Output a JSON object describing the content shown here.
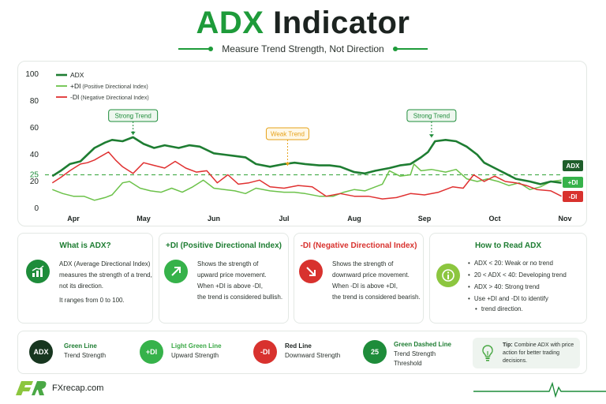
{
  "header": {
    "title_accent": "ADX",
    "title_rest": "Indicator",
    "subtitle": "Measure Trend Strength, Not Direction"
  },
  "colors": {
    "adx": "#1e7d32",
    "plus_di": "#6cc24a",
    "minus_di": "#e03131",
    "threshold": "#4caf50"
  },
  "chart_data": {
    "type": "line",
    "x_labels": [
      "Apr",
      "May",
      "Jun",
      "Jul",
      "Aug",
      "Sep",
      "Oct",
      "Nov"
    ],
    "y_ticks": [
      0,
      20,
      25,
      40,
      60,
      80,
      100
    ],
    "ylim": [
      0,
      100
    ],
    "grid": false,
    "legend_position": "top-left",
    "legend": [
      {
        "name": "ADX",
        "note": ""
      },
      {
        "name": "+DI",
        "note": "(Positive Directional Index)"
      },
      {
        "name": "-DI",
        "note": "(Negative Directional Index)"
      }
    ],
    "threshold": 25,
    "end_labels": [
      "ADX",
      "+DI",
      "-DI"
    ],
    "annotations": [
      {
        "label": "Strong Trend",
        "x": 0.85,
        "y": 53,
        "style": "green"
      },
      {
        "label": "Weak Trend",
        "x": 3.05,
        "y": 30,
        "style": "amber"
      },
      {
        "label": "Strong Trend",
        "x": 5.1,
        "y": 51,
        "style": "green"
      }
    ],
    "series": [
      {
        "name": "ADX",
        "x": [
          -0.3,
          -0.18,
          -0.05,
          0.1,
          0.2,
          0.3,
          0.45,
          0.55,
          0.7,
          0.85,
          1.0,
          1.15,
          1.3,
          1.5,
          1.65,
          1.8,
          2.0,
          2.15,
          2.3,
          2.45,
          2.6,
          2.8,
          3.0,
          3.15,
          3.3,
          3.5,
          3.65,
          3.8,
          4.0,
          4.15,
          4.3,
          4.5,
          4.65,
          4.8,
          4.95,
          5.05,
          5.15,
          5.3,
          5.45,
          5.6,
          5.75,
          5.85,
          6.0,
          6.15,
          6.3,
          6.5,
          6.65,
          6.8,
          6.95
        ],
        "values": [
          24,
          28,
          33,
          35,
          40,
          45,
          49,
          51,
          50,
          53,
          48,
          45,
          47,
          45,
          47,
          46,
          41,
          40,
          39,
          38,
          33,
          31,
          33,
          34,
          33,
          32,
          32,
          31,
          27,
          26,
          28,
          30,
          32,
          33,
          38,
          42,
          50,
          51,
          50,
          46,
          40,
          34,
          30,
          26,
          22,
          20,
          18,
          20,
          19
        ]
      },
      {
        "name": "+DI",
        "x": [
          -0.3,
          -0.15,
          0.0,
          0.15,
          0.3,
          0.45,
          0.55,
          0.7,
          0.8,
          0.95,
          1.1,
          1.25,
          1.4,
          1.55,
          1.7,
          1.85,
          2.0,
          2.15,
          2.3,
          2.45,
          2.6,
          2.8,
          3.0,
          3.15,
          3.3,
          3.5,
          3.7,
          3.85,
          4.0,
          4.15,
          4.3,
          4.4,
          4.5,
          4.65,
          4.8,
          4.85,
          4.95,
          5.1,
          5.3,
          5.45,
          5.6,
          5.75,
          5.9,
          6.05,
          6.2,
          6.35,
          6.5,
          6.65,
          6.8,
          6.95
        ],
        "values": [
          14,
          11,
          9,
          9,
          6,
          8,
          10,
          19,
          20,
          15,
          13,
          12,
          15,
          12,
          16,
          21,
          15,
          14,
          13,
          11,
          15,
          13,
          12,
          12,
          11,
          9,
          9,
          12,
          14,
          13,
          16,
          18,
          28,
          24,
          25,
          33,
          28,
          29,
          27,
          29,
          22,
          20,
          22,
          20,
          17,
          19,
          14,
          16,
          20,
          21
        ]
      },
      {
        "name": "-DI",
        "x": [
          -0.3,
          -0.18,
          -0.05,
          0.1,
          0.2,
          0.3,
          0.4,
          0.5,
          0.6,
          0.7,
          0.85,
          1.0,
          1.15,
          1.3,
          1.45,
          1.6,
          1.75,
          1.9,
          2.05,
          2.2,
          2.35,
          2.5,
          2.65,
          2.8,
          3.0,
          3.2,
          3.4,
          3.6,
          3.8,
          4.0,
          4.2,
          4.4,
          4.6,
          4.8,
          5.0,
          5.2,
          5.4,
          5.55,
          5.7,
          5.85,
          6.0,
          6.15,
          6.3,
          6.45,
          6.6,
          6.8,
          6.95
        ],
        "values": [
          19,
          23,
          28,
          33,
          34,
          36,
          39,
          42,
          36,
          31,
          26,
          34,
          32,
          30,
          35,
          30,
          27,
          28,
          19,
          25,
          18,
          19,
          21,
          16,
          15,
          17,
          16,
          9,
          11,
          9,
          9,
          7,
          8,
          11,
          10,
          12,
          16,
          15,
          25,
          20,
          24,
          20,
          19,
          17,
          14,
          13,
          9
        ]
      }
    ]
  },
  "cards": [
    {
      "title": "What is ADX?",
      "lines": [
        "ADX (Average Directional Index)",
        "measures the strength of a trend,",
        "not its direction.",
        "It ranges from 0 to 100."
      ]
    },
    {
      "title": "+DI (Positive Directional Index)",
      "lines": [
        "Shows the strength of",
        "upward price movement.",
        "When +DI is above -DI,",
        "the trend is considered bullish."
      ]
    },
    {
      "title": "-DI (Negative Directional Index)",
      "lines": [
        "Shows the strength of",
        "downward price movement.",
        "When -DI is above +DI,",
        "the trend is considered bearish."
      ]
    },
    {
      "title": "How to Read ADX",
      "bullets": [
        "ADX < 20: Weak or no trend",
        "20 < ADX < 40: Developing trend",
        "ADX > 40: Strong trend",
        "Use +DI and -DI to identify",
        "trend direction."
      ]
    }
  ],
  "legend_items": [
    {
      "badge": "ADX",
      "label": "Green Line",
      "desc": [
        "Trend Strength"
      ],
      "label_color": "#1e7d32",
      "badge_color": "#17361f"
    },
    {
      "badge": "+DI",
      "label": "Light Green Line",
      "desc": [
        "Upward Strength"
      ],
      "label_color": "#3aa845",
      "badge_color": "#36b24a"
    },
    {
      "badge": "-DI",
      "label": "Red Line",
      "desc": [
        "Downward Strength"
      ],
      "label_color": "#1c2320",
      "badge_color": "#d8322e"
    },
    {
      "badge": "25",
      "label": "Green Dashed Line",
      "desc": [
        "Trend Strength",
        "Threshold"
      ],
      "label_color": "#1e7d32",
      "badge_color": "#1e8c3a"
    }
  ],
  "tip": {
    "prefix": "Tip:",
    "text": "Combine ADX with price action for better trading decisions."
  },
  "footer": {
    "brand": "FXrecap.com",
    "logo_letters": "FR"
  }
}
